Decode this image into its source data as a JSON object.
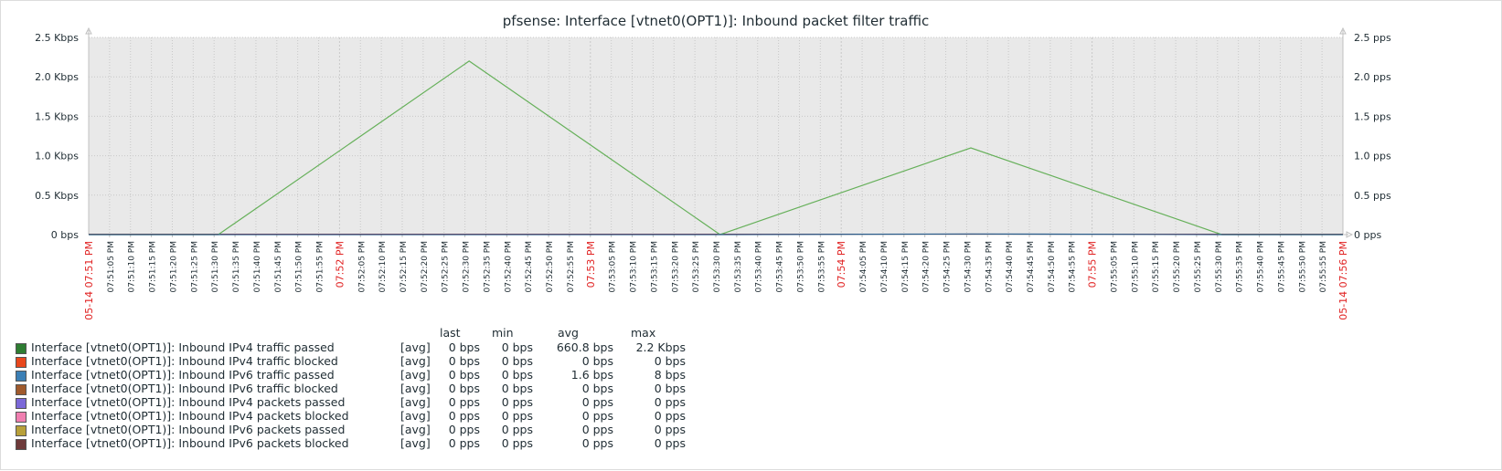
{
  "chart_data": {
    "type": "line",
    "title": "pfsense: Interface [vtnet0(OPT1)]: Inbound packet filter traffic",
    "left_axis": {
      "ticks": [
        {
          "value": 0,
          "label": "0 bps"
        },
        {
          "value": 0.5,
          "label": "0.5 Kbps"
        },
        {
          "value": 1.0,
          "label": "1.0 Kbps"
        },
        {
          "value": 1.5,
          "label": "1.5 Kbps"
        },
        {
          "value": 2.0,
          "label": "2.0 Kbps"
        },
        {
          "value": 2.5,
          "label": "2.5 Kbps"
        }
      ],
      "unit": "Kbps",
      "ylim": [
        0,
        2.5
      ]
    },
    "right_axis": {
      "ticks": [
        {
          "value": 0,
          "label": "0 pps"
        },
        {
          "value": 0.5,
          "label": "0.5 pps"
        },
        {
          "value": 1.0,
          "label": "1.0 pps"
        },
        {
          "value": 1.5,
          "label": "1.5 pps"
        },
        {
          "value": 2.0,
          "label": "2.0 pps"
        },
        {
          "value": 2.5,
          "label": "2.5 pps"
        }
      ],
      "unit": "pps",
      "ylim": [
        0,
        2.5
      ]
    },
    "x_axis": {
      "start_label": "05-14 07:51 PM",
      "end_label": "05-14 07:56 PM",
      "labels": [
        "07:51:05 PM",
        "07:51:10 PM",
        "07:51:15 PM",
        "07:51:20 PM",
        "07:51:25 PM",
        "07:51:30 PM",
        "07:51:35 PM",
        "07:51:40 PM",
        "07:51:45 PM",
        "07:51:50 PM",
        "07:51:55 PM",
        "07:52 PM",
        "07:52:05 PM",
        "07:52:10 PM",
        "07:52:15 PM",
        "07:52:20 PM",
        "07:52:25 PM",
        "07:52:30 PM",
        "07:52:35 PM",
        "07:52:40 PM",
        "07:52:45 PM",
        "07:52:50 PM",
        "07:52:55 PM",
        "07:53 PM",
        "07:53:05 PM",
        "07:53:10 PM",
        "07:53:15 PM",
        "07:53:20 PM",
        "07:53:25 PM",
        "07:53:30 PM",
        "07:53:35 PM",
        "07:53:40 PM",
        "07:53:45 PM",
        "07:53:50 PM",
        "07:53:55 PM",
        "07:54 PM",
        "07:54:05 PM",
        "07:54:10 PM",
        "07:54:15 PM",
        "07:54:20 PM",
        "07:54:25 PM",
        "07:54:30 PM",
        "07:54:35 PM",
        "07:54:40 PM",
        "07:54:45 PM",
        "07:54:50 PM",
        "07:54:55 PM",
        "07:55 PM",
        "07:55:05 PM",
        "07:55:10 PM",
        "07:55:15 PM",
        "07:55:20 PM",
        "07:55:25 PM",
        "07:55:30 PM",
        "07:55:35 PM",
        "07:55:40 PM",
        "07:55:45 PM",
        "07:55:50 PM",
        "07:55:55 PM"
      ],
      "major_labels": [
        "07:52 PM",
        "07:53 PM",
        "07:54 PM",
        "07:55 PM"
      ],
      "xlim": [
        "07:51:00 PM",
        "07:56:00 PM"
      ]
    },
    "grid": true,
    "series": [
      {
        "name": "Interface [vtnet0(OPT1)]: Inbound IPv4 traffic passed",
        "color": "#2e7d32",
        "line_color": "#66b05a",
        "points": [
          {
            "t": "07:51:00 PM",
            "v": 0
          },
          {
            "t": "07:51:31 PM",
            "v": 0
          },
          {
            "t": "07:52:31 PM",
            "v": 2.2
          },
          {
            "t": "07:53:31 PM",
            "v": 0
          },
          {
            "t": "07:54:31 PM",
            "v": 1.1
          },
          {
            "t": "07:55:31 PM",
            "v": 0
          },
          {
            "t": "07:56:00 PM",
            "v": 0
          }
        ]
      },
      {
        "name": "Interface [vtnet0(OPT1)]: Inbound IPv6 traffic passed",
        "color": "#3b7fb5",
        "line_color": "#2a5d8c",
        "points": [
          {
            "t": "07:51:00 PM",
            "v": 0
          },
          {
            "t": "07:53:31 PM",
            "v": 0
          },
          {
            "t": "07:54:31 PM",
            "v": 0.008
          },
          {
            "t": "07:55:31 PM",
            "v": 0
          },
          {
            "t": "07:56:00 PM",
            "v": 0
          }
        ]
      }
    ],
    "legend": {
      "headers": {
        "last": "last",
        "min": "min",
        "avg": "avg",
        "max": "max"
      },
      "rows": [
        {
          "color": "#2e7d32",
          "name": "Interface [vtnet0(OPT1)]: Inbound IPv4 traffic passed",
          "func": "[avg]",
          "last": "0 bps",
          "min": "0 bps",
          "avg": "660.8 bps",
          "max": "2.2 Kbps"
        },
        {
          "color": "#e8471c",
          "name": "Interface [vtnet0(OPT1)]: Inbound IPv4 traffic blocked",
          "func": "[avg]",
          "last": "0 bps",
          "min": "0 bps",
          "avg": "0 bps",
          "max": "0 bps"
        },
        {
          "color": "#3b7fb5",
          "name": "Interface [vtnet0(OPT1)]: Inbound IPv6 traffic passed",
          "func": "[avg]",
          "last": "0 bps",
          "min": "0 bps",
          "avg": "1.6 bps",
          "max": "8 bps"
        },
        {
          "color": "#a05a2c",
          "name": "Interface [vtnet0(OPT1)]: Inbound IPv6 traffic blocked",
          "func": "[avg]",
          "last": "0 bps",
          "min": "0 bps",
          "avg": "0 bps",
          "max": "0 bps"
        },
        {
          "color": "#7b68d8",
          "name": "Interface [vtnet0(OPT1)]: Inbound IPv4 packets passed",
          "func": "[avg]",
          "last": "0 pps",
          "min": "0 pps",
          "avg": "0 pps",
          "max": "0 pps"
        },
        {
          "color": "#f07fb0",
          "name": "Interface [vtnet0(OPT1)]: Inbound IPv4 packets blocked",
          "func": "[avg]",
          "last": "0 pps",
          "min": "0 pps",
          "avg": "0 pps",
          "max": "0 pps"
        },
        {
          "color": "#b8a03a",
          "name": "Interface [vtnet0(OPT1)]: Inbound IPv6 packets passed",
          "func": "[avg]",
          "last": "0 pps",
          "min": "0 pps",
          "avg": "0 pps",
          "max": "0 pps"
        },
        {
          "color": "#6e3a3a",
          "name": "Interface [vtnet0(OPT1)]: Inbound IPv6 packets blocked",
          "func": "[avg]",
          "last": "0 pps",
          "min": "0 pps",
          "avg": "0 pps",
          "max": "0 pps"
        }
      ]
    },
    "colors": {
      "plot_bg": "#e9e9e9",
      "grid": "#c8c8c8",
      "axis": "#c0c0c0",
      "major_label": "#e02020",
      "text": "#1f2c33",
      "baseline": "#b03030"
    }
  }
}
